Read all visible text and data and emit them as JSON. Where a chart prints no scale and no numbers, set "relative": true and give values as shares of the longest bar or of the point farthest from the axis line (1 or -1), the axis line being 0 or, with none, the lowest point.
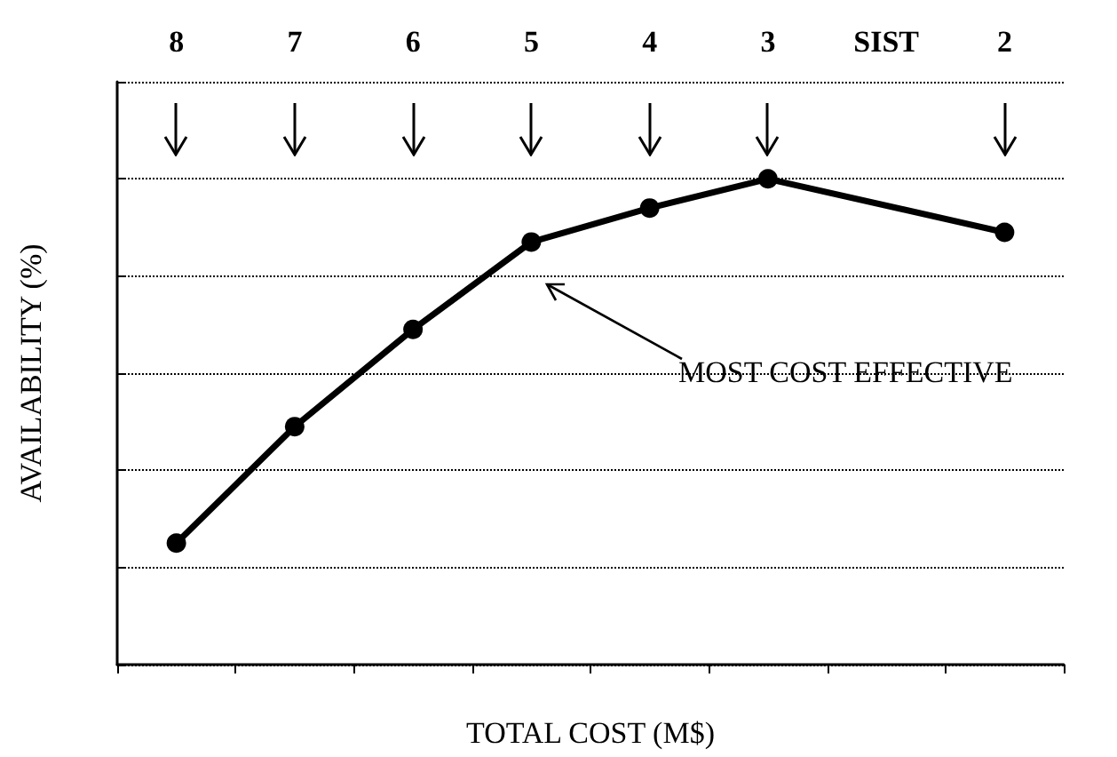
{
  "chart_data": {
    "type": "line",
    "xlabel": "TOTAL COST (M$)",
    "ylabel": "AVAILABILITY (%)",
    "categories": [
      "8",
      "7",
      "6",
      "5",
      "4",
      "3",
      "SIST",
      "2"
    ],
    "values": [
      0.25,
      0.49,
      0.69,
      0.87,
      0.94,
      1,
      null,
      0.89
    ],
    "color": "#000000",
    "relative": true,
    "marker": "circle",
    "line_style": "solid",
    "grid": "y",
    "tick_labels": "x",
    "annotations": [
      "MOST COST EFFECTIVE"
    ]
  }
}
